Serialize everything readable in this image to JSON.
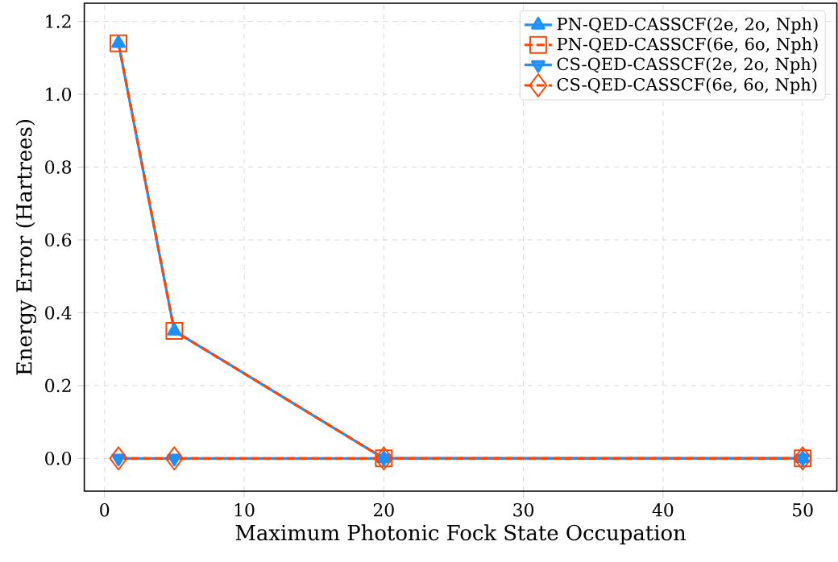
{
  "chart_data": {
    "type": "line",
    "xlabel": "Maximum Photonic Fock State Occupation",
    "ylabel": "Energy Error (Hartrees)",
    "x": [
      1,
      5,
      20,
      50
    ],
    "series": [
      {
        "name": "PN-QED-CASSCF(2e, 2o, Nph)",
        "color": "#1e90ff",
        "values": [
          1.14,
          0.35,
          0.0,
          0.0
        ],
        "marker": "triangle",
        "line_style": "solid"
      },
      {
        "name": "PN-QED-CASSCF(6e, 6o, Nph)",
        "color": "#ff4500",
        "values": [
          1.14,
          0.35,
          0.0,
          0.0
        ],
        "marker": "square",
        "line_style": "dashed"
      },
      {
        "name": "CS-QED-CASSCF(2e, 2o, Nph)",
        "color": "#1e90ff",
        "values": [
          0.0,
          0.0,
          0.0,
          0.0
        ],
        "marker": "triangle_down",
        "line_style": "solid"
      },
      {
        "name": "CS-QED-CASSCF(6e, 6o, Nph)",
        "color": "#ff4500",
        "values": [
          0.0,
          0.0,
          0.0,
          0.0
        ],
        "marker": "diamond",
        "line_style": "dashed"
      }
    ],
    "xlim": [
      -1.45,
      52.45
    ],
    "ylim": [
      -0.09,
      1.25
    ],
    "xticks": [
      0,
      10,
      20,
      30,
      40,
      50
    ],
    "yticks": [
      {
        "value": 0,
        "label": "0.0"
      },
      {
        "value": 0.2,
        "label": "0.2"
      },
      {
        "value": 0.4,
        "label": "0.4"
      },
      {
        "value": 0.6,
        "label": "0.6"
      },
      {
        "value": 0.8,
        "label": "0.8"
      },
      {
        "value": 1.0,
        "label": "1.0"
      },
      {
        "value": 1.2,
        "label": "1.2"
      }
    ],
    "grid": true,
    "legend": "top right"
  }
}
